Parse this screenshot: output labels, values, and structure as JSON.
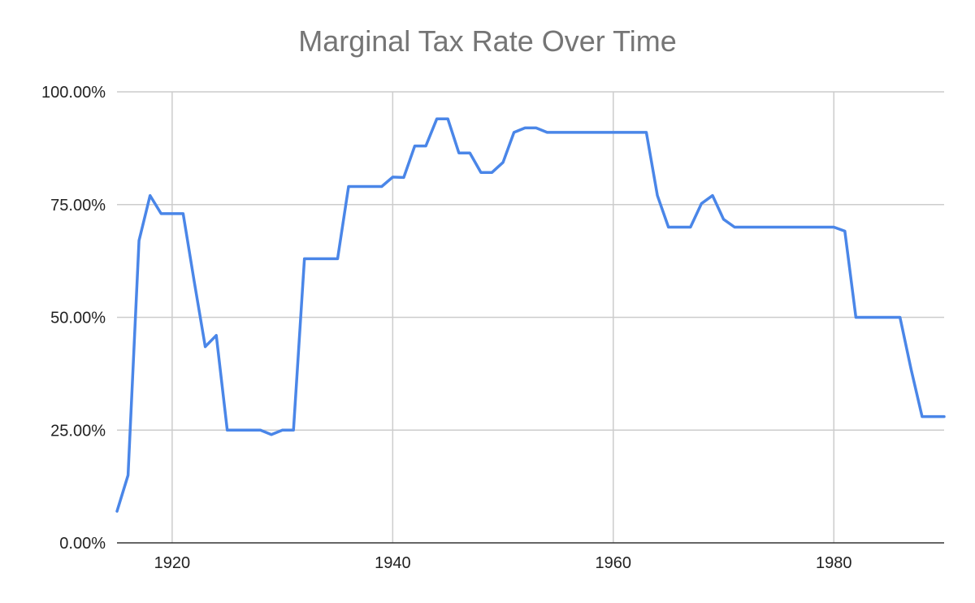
{
  "chart_data": {
    "type": "line",
    "title": "Marginal Tax Rate Over Time",
    "xlabel": "",
    "ylabel": "",
    "xlim": [
      1915,
      1990
    ],
    "ylim": [
      0,
      100
    ],
    "x_ticks": [
      1920,
      1940,
      1960,
      1980
    ],
    "y_ticks": [
      0,
      25,
      50,
      75,
      100
    ],
    "y_tick_labels": [
      "0.00%",
      "25.00%",
      "50.00%",
      "75.00%",
      "100.00%"
    ],
    "grid": true,
    "legend": "none",
    "series": [
      {
        "color": "#4a86e8",
        "x": [
          1915,
          1916,
          1917,
          1918,
          1919,
          1920,
          1921,
          1922,
          1923,
          1924,
          1925,
          1926,
          1927,
          1928,
          1929,
          1930,
          1931,
          1932,
          1933,
          1934,
          1935,
          1936,
          1937,
          1938,
          1939,
          1940,
          1941,
          1942,
          1943,
          1944,
          1945,
          1946,
          1947,
          1948,
          1949,
          1950,
          1951,
          1952,
          1953,
          1954,
          1955,
          1956,
          1957,
          1958,
          1959,
          1960,
          1961,
          1962,
          1963,
          1964,
          1965,
          1966,
          1967,
          1968,
          1969,
          1970,
          1971,
          1972,
          1973,
          1974,
          1975,
          1976,
          1977,
          1978,
          1979,
          1980,
          1981,
          1982,
          1983,
          1984,
          1985,
          1986,
          1987,
          1988,
          1989,
          1990
        ],
        "values": [
          7,
          15,
          67,
          77,
          73,
          73,
          73,
          58,
          43.5,
          46,
          25,
          25,
          25,
          25,
          24,
          25,
          25,
          63,
          63,
          63,
          63,
          79,
          79,
          79,
          79,
          81.1,
          81,
          88,
          88,
          94,
          94,
          86.45,
          86.45,
          82.13,
          82.13,
          84.36,
          91,
          92,
          92,
          91,
          91,
          91,
          91,
          91,
          91,
          91,
          91,
          91,
          91,
          77,
          70,
          70,
          70,
          75.25,
          77,
          71.75,
          70,
          70,
          70,
          70,
          70,
          70,
          70,
          70,
          70,
          70,
          69.125,
          50,
          50,
          50,
          50,
          50,
          38.5,
          28,
          28,
          28
        ]
      }
    ]
  }
}
